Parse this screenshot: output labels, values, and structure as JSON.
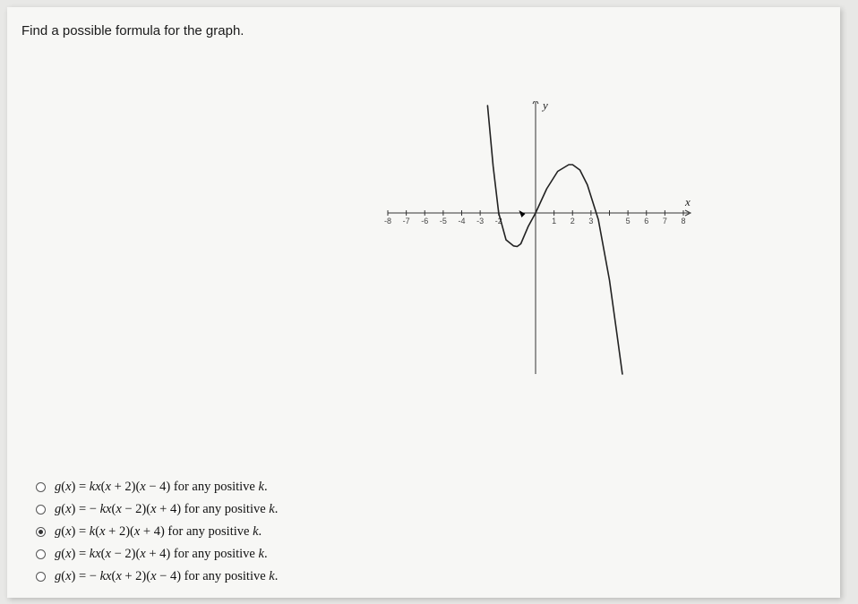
{
  "question": "Find a possible formula for the graph.",
  "graph": {
    "type": "line",
    "xlim": [
      -8,
      8
    ],
    "ylim": [
      -12,
      8
    ],
    "xticks_neg": [
      "-8",
      "-7",
      "-6",
      "-5",
      "-4",
      "-3",
      "-2"
    ],
    "xticks_pos": [
      "1",
      "2",
      "3",
      "",
      "5",
      "6",
      "7",
      "8"
    ],
    "x_axis_label": "x",
    "y_axis_label": "y",
    "axis_color": "#333333",
    "curve_color": "#222222",
    "background_color": "#f7f7f5",
    "curve_points": [
      [
        -2.6,
        8
      ],
      [
        -2.3,
        3.5
      ],
      [
        -2.0,
        0
      ],
      [
        -1.6,
        -2.0
      ],
      [
        -1.2,
        -2.45
      ],
      [
        -1.0,
        -2.5
      ],
      [
        -0.8,
        -2.3
      ],
      [
        -0.4,
        -1.0
      ],
      [
        0,
        0
      ],
      [
        0.6,
        1.8
      ],
      [
        1.2,
        3.1
      ],
      [
        1.8,
        3.6
      ],
      [
        2.0,
        3.6
      ],
      [
        2.4,
        3.2
      ],
      [
        2.8,
        2.1
      ],
      [
        3.4,
        -0.5
      ],
      [
        4.0,
        -5.0
      ],
      [
        4.4,
        -9.0
      ],
      [
        4.7,
        -12
      ]
    ]
  },
  "answers": [
    {
      "formula_html": "<span class='fn'>g</span>(<span class='var'>x</span>) = <span class='var'>k</span><span class='var'>x</span>(<span class='var'>x</span> + 2)(<span class='var'>x</span> − 4) for any positive <span class='var'>k</span>.",
      "selected": false
    },
    {
      "formula_html": "<span class='fn'>g</span>(<span class='var'>x</span>) = − <span class='var'>k</span><span class='var'>x</span>(<span class='var'>x</span> − 2)(<span class='var'>x</span> + 4) for any positive <span class='var'>k</span>.",
      "selected": false
    },
    {
      "formula_html": "<span class='fn'>g</span>(<span class='var'>x</span>) = <span class='var'>k</span>(<span class='var'>x</span> + 2)(<span class='var'>x</span> + 4) for any positive <span class='var'>k</span>.",
      "selected": true
    },
    {
      "formula_html": "<span class='fn'>g</span>(<span class='var'>x</span>) = <span class='var'>k</span><span class='var'>x</span>(<span class='var'>x</span> − 2)(<span class='var'>x</span> + 4) for any positive <span class='var'>k</span>.",
      "selected": false
    },
    {
      "formula_html": "<span class='fn'>g</span>(<span class='var'>x</span>) = − <span class='var'>k</span><span class='var'>x</span>(<span class='var'>x</span> + 2)(<span class='var'>x</span> − 4) for any positive <span class='var'>k</span>.",
      "selected": false
    }
  ]
}
